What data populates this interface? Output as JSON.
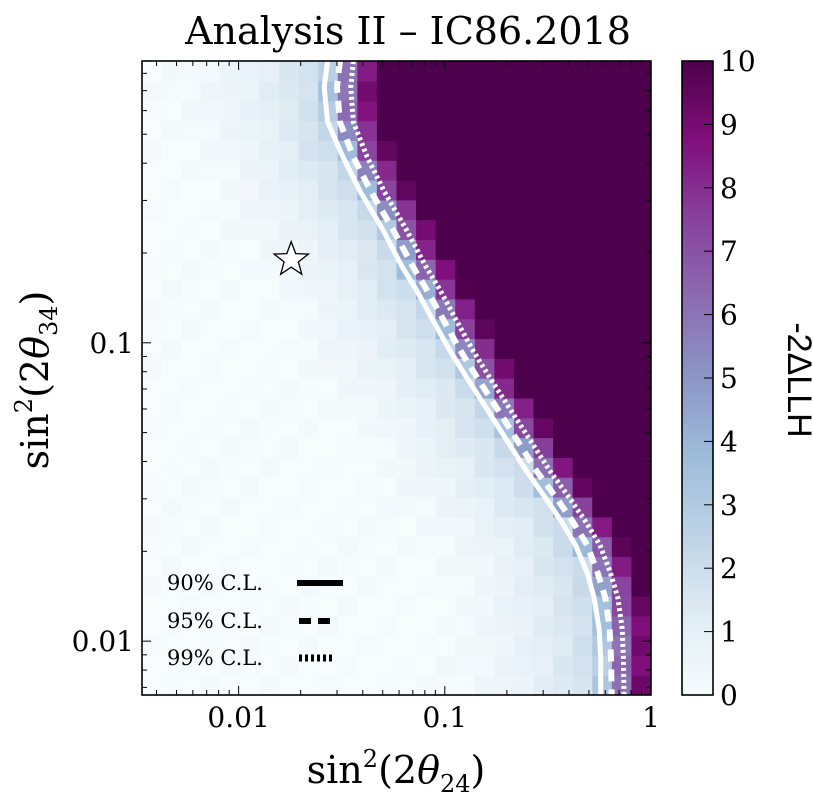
{
  "chart_data": {
    "type": "heatmap",
    "title": "Analysis II – IC86.2018",
    "xlabel": {
      "base": "sin",
      "sup": "2",
      "open": "(2",
      "theta": "θ",
      "sub": "24",
      "close": ")"
    },
    "ylabel": {
      "base": "sin",
      "sup": "2",
      "open": "(2",
      "theta": "θ",
      "sub": "34",
      "close": ")"
    },
    "x_scale": "log",
    "y_scale": "log",
    "xlim": [
      0.0034,
      1.0
    ],
    "ylim": [
      0.0066,
      0.88
    ],
    "x_ticks": [
      {
        "value": 0.01,
        "label": "0.01"
      },
      {
        "value": 0.1,
        "label": "0.1"
      },
      {
        "value": 1.0,
        "label": "1"
      }
    ],
    "y_ticks": [
      {
        "value": 0.01,
        "label": "0.01"
      },
      {
        "value": 0.1,
        "label": "0.1"
      }
    ],
    "best_fit": {
      "x": 0.018,
      "y": 0.19,
      "marker": "star"
    },
    "contours": [
      {
        "name": "90% C.L.",
        "style": "solid",
        "color": "#ffffff",
        "points": [
          [
            0.027,
            0.88
          ],
          [
            0.026,
            0.72
          ],
          [
            0.027,
            0.55
          ],
          [
            0.032,
            0.42
          ],
          [
            0.039,
            0.32
          ],
          [
            0.05,
            0.24
          ],
          [
            0.062,
            0.18
          ],
          [
            0.073,
            0.15
          ],
          [
            0.087,
            0.12
          ],
          [
            0.105,
            0.095
          ],
          [
            0.13,
            0.075
          ],
          [
            0.16,
            0.06
          ],
          [
            0.2,
            0.047
          ],
          [
            0.25,
            0.037
          ],
          [
            0.31,
            0.03
          ],
          [
            0.37,
            0.025
          ],
          [
            0.43,
            0.021
          ],
          [
            0.49,
            0.017
          ],
          [
            0.53,
            0.014
          ],
          [
            0.56,
            0.011
          ],
          [
            0.57,
            0.0088
          ],
          [
            0.57,
            0.0066
          ]
        ]
      },
      {
        "name": "95% C.L.",
        "style": "dashed",
        "color": "#ffffff",
        "points": [
          [
            0.031,
            0.88
          ],
          [
            0.03,
            0.72
          ],
          [
            0.031,
            0.55
          ],
          [
            0.036,
            0.42
          ],
          [
            0.044,
            0.32
          ],
          [
            0.056,
            0.24
          ],
          [
            0.07,
            0.18
          ],
          [
            0.082,
            0.15
          ],
          [
            0.098,
            0.12
          ],
          [
            0.118,
            0.095
          ],
          [
            0.146,
            0.075
          ],
          [
            0.18,
            0.06
          ],
          [
            0.225,
            0.047
          ],
          [
            0.28,
            0.037
          ],
          [
            0.35,
            0.03
          ],
          [
            0.42,
            0.025
          ],
          [
            0.49,
            0.021
          ],
          [
            0.55,
            0.017
          ],
          [
            0.6,
            0.014
          ],
          [
            0.63,
            0.011
          ],
          [
            0.64,
            0.0088
          ],
          [
            0.645,
            0.0066
          ]
        ]
      },
      {
        "name": "99% C.L.",
        "style": "dotted",
        "color": "#ffffff",
        "points": [
          [
            0.036,
            0.88
          ],
          [
            0.035,
            0.72
          ],
          [
            0.036,
            0.55
          ],
          [
            0.042,
            0.42
          ],
          [
            0.051,
            0.32
          ],
          [
            0.065,
            0.24
          ],
          [
            0.081,
            0.18
          ],
          [
            0.095,
            0.15
          ],
          [
            0.113,
            0.12
          ],
          [
            0.136,
            0.095
          ],
          [
            0.168,
            0.075
          ],
          [
            0.207,
            0.06
          ],
          [
            0.26,
            0.047
          ],
          [
            0.325,
            0.037
          ],
          [
            0.405,
            0.03
          ],
          [
            0.485,
            0.025
          ],
          [
            0.565,
            0.021
          ],
          [
            0.635,
            0.017
          ],
          [
            0.69,
            0.014
          ],
          [
            0.725,
            0.011
          ],
          [
            0.735,
            0.0088
          ],
          [
            0.74,
            0.0066
          ]
        ]
      }
    ],
    "legend": {
      "placement": "bottom-left",
      "entries": [
        {
          "label": "90% C.L.",
          "style": "solid"
        },
        {
          "label": "95% C.L.",
          "style": "dashed"
        },
        {
          "label": "99% C.L.",
          "style": "dotted"
        }
      ]
    },
    "colorbar": {
      "label": "-2ΔLLH",
      "min": 0,
      "max": 10,
      "ticks": [
        0,
        1,
        2,
        3,
        4,
        5,
        6,
        7,
        8,
        9,
        10
      ],
      "colors": [
        "#f7fcfd",
        "#e0ecf4",
        "#bfd3e6",
        "#9ebcda",
        "#8c96c6",
        "#8c6bb1",
        "#88419d",
        "#810f7c",
        "#4d004b"
      ]
    }
  }
}
